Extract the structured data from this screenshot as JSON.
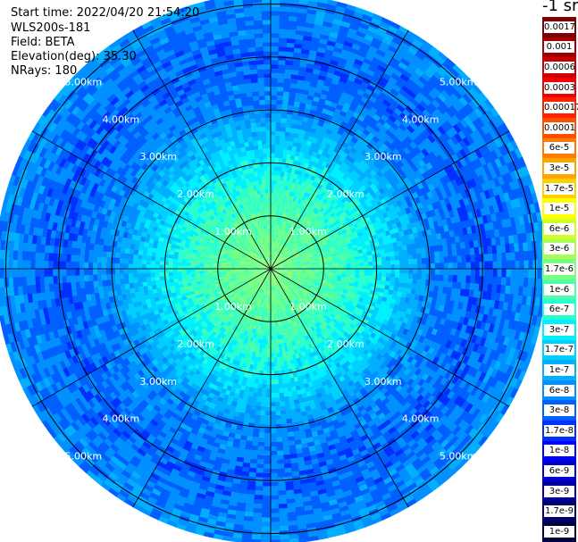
{
  "info": {
    "start_time": "Start time: 2022/04/20 21:54:20",
    "instrument": "WLS200s-181",
    "field": "Field: BETA",
    "elevation": "Elevation(deg): 35.30",
    "nrays": "NRays: 180"
  },
  "chart_data": {
    "type": "heatmap",
    "projection": "polar-ppi",
    "range_rings_km": [
      1,
      2,
      3,
      4,
      5
    ],
    "ring_labels": [
      "1.00km",
      "2.00km",
      "3.00km",
      "4.00km",
      "5.00km"
    ],
    "max_range_km": 5.2,
    "nrays": 180,
    "radial_lines_deg": [
      0,
      30,
      60,
      90,
      120,
      150,
      180,
      210,
      240,
      270,
      300,
      330
    ],
    "field": "BETA",
    "value_profile": [
      {
        "range_km": 0.0,
        "value": "1.7e-6"
      },
      {
        "range_km": 1.0,
        "value": "1e-6"
      },
      {
        "range_km": 2.0,
        "value": "3e-7"
      },
      {
        "range_km": 3.0,
        "value": "6e-8"
      },
      {
        "range_km": 4.0,
        "value": "3e-8"
      },
      {
        "range_km": 5.0,
        "value": "6e-8"
      }
    ]
  },
  "colorbar": {
    "unit": "-1 sr",
    "entries": [
      {
        "label": "0.0017",
        "color": "#7f0000"
      },
      {
        "label": "0.001",
        "color": "#a00000"
      },
      {
        "label": "0.0006",
        "color": "#c80000"
      },
      {
        "label": "0.0003",
        "color": "#f00000"
      },
      {
        "label": "0.00017",
        "color": "#ff2000"
      },
      {
        "label": "0.0001",
        "color": "#ff5000"
      },
      {
        "label": "6e-5",
        "color": "#ff7a00"
      },
      {
        "label": "3e-5",
        "color": "#ffa500"
      },
      {
        "label": "1.7e-5",
        "color": "#ffd000"
      },
      {
        "label": "1e-5",
        "color": "#ffff00"
      },
      {
        "label": "6e-6",
        "color": "#d0ff2a"
      },
      {
        "label": "3e-6",
        "color": "#a5ff55"
      },
      {
        "label": "1.7e-6",
        "color": "#7aff7f"
      },
      {
        "label": "1e-6",
        "color": "#50ffa5"
      },
      {
        "label": "6e-7",
        "color": "#2affd0"
      },
      {
        "label": "3e-7",
        "color": "#00f0ff"
      },
      {
        "label": "1.7e-7",
        "color": "#00d0ff"
      },
      {
        "label": "1e-7",
        "color": "#00b0ff"
      },
      {
        "label": "6e-8",
        "color": "#0090ff"
      },
      {
        "label": "3e-8",
        "color": "#0060ff"
      },
      {
        "label": "1.7e-8",
        "color": "#0030ff"
      },
      {
        "label": "1e-8",
        "color": "#0000ff"
      },
      {
        "label": "6e-9",
        "color": "#0000d0"
      },
      {
        "label": "3e-9",
        "color": "#0000a0"
      },
      {
        "label": "1.7e-9",
        "color": "#000070"
      },
      {
        "label": "1e-9",
        "color": "#000040"
      }
    ]
  }
}
